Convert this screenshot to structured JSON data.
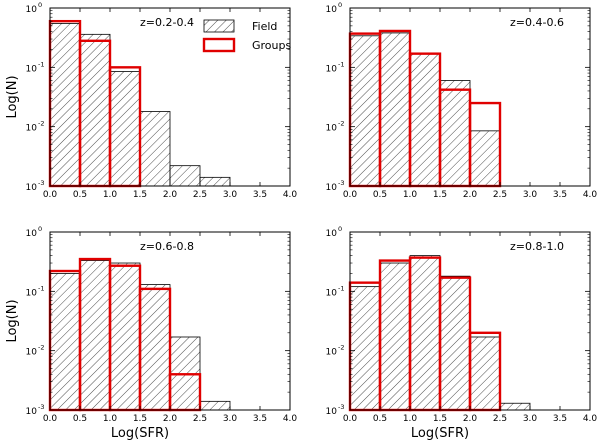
{
  "colors": {
    "field_edge": "#000000",
    "field_hatch": "#000000",
    "groups_edge": "#e00000",
    "axes": "#000000",
    "background": "#ffffff"
  },
  "legend": {
    "field_label": "Field",
    "groups_label": "Groups"
  },
  "chart_data": [
    {
      "type": "bar",
      "annotation": "z=0.2-0.4",
      "ylabel": "Log(N)",
      "xlabel": "",
      "xlim": [
        0.0,
        4.0
      ],
      "ylim_exponent": [
        -3,
        0
      ],
      "xticks": [
        "0.0",
        "0.5",
        "1.0",
        "1.5",
        "2.0",
        "2.5",
        "3.0",
        "3.5",
        "4.0"
      ],
      "yticks": [
        {
          "base": "10",
          "exp": "0"
        },
        {
          "base": "10",
          "exp": "-1"
        },
        {
          "base": "10",
          "exp": "-2"
        },
        {
          "base": "10",
          "exp": "-3"
        }
      ],
      "bin_edges": [
        0.0,
        0.5,
        1.0,
        1.5,
        2.0,
        2.5,
        3.0,
        3.5,
        4.0
      ],
      "series": [
        {
          "name": "Field",
          "values": [
            0.55,
            0.36,
            0.085,
            0.018,
            0.0022,
            0.0014,
            0,
            0
          ]
        },
        {
          "name": "Groups",
          "values": [
            0.6,
            0.28,
            0.1,
            0,
            0,
            0,
            0,
            0
          ]
        }
      ]
    },
    {
      "type": "bar",
      "annotation": "z=0.4-0.6",
      "ylabel": "",
      "xlabel": "",
      "xlim": [
        0.0,
        4.0
      ],
      "ylim_exponent": [
        -3,
        0
      ],
      "xticks": [
        "0.0",
        "0.5",
        "1.0",
        "1.5",
        "2.0",
        "2.5",
        "3.0",
        "3.5",
        "4.0"
      ],
      "yticks": [
        {
          "base": "10",
          "exp": "0"
        },
        {
          "base": "10",
          "exp": "-1"
        },
        {
          "base": "10",
          "exp": "-2"
        },
        {
          "base": "10",
          "exp": "-3"
        }
      ],
      "bin_edges": [
        0.0,
        0.5,
        1.0,
        1.5,
        2.0,
        2.5,
        3.0,
        3.5,
        4.0
      ],
      "series": [
        {
          "name": "Field",
          "values": [
            0.34,
            0.38,
            0.17,
            0.06,
            0.0085,
            0,
            0,
            0
          ]
        },
        {
          "name": "Groups",
          "values": [
            0.37,
            0.41,
            0.17,
            0.042,
            0.025,
            0,
            0,
            0
          ]
        }
      ]
    },
    {
      "type": "bar",
      "annotation": "z=0.6-0.8",
      "ylabel": "Log(N)",
      "xlabel": "Log(SFR)",
      "xlim": [
        0.0,
        4.0
      ],
      "ylim_exponent": [
        -3,
        0
      ],
      "xticks": [
        "0.0",
        "0.5",
        "1.0",
        "1.5",
        "2.0",
        "2.5",
        "3.0",
        "3.5",
        "4.0"
      ],
      "yticks": [
        {
          "base": "10",
          "exp": "0"
        },
        {
          "base": "10",
          "exp": "-1"
        },
        {
          "base": "10",
          "exp": "-2"
        },
        {
          "base": "10",
          "exp": "-3"
        }
      ],
      "bin_edges": [
        0.0,
        0.5,
        1.0,
        1.5,
        2.0,
        2.5,
        3.0,
        3.5,
        4.0
      ],
      "series": [
        {
          "name": "Field",
          "values": [
            0.2,
            0.33,
            0.3,
            0.13,
            0.017,
            0.0014,
            0,
            0
          ]
        },
        {
          "name": "Groups",
          "values": [
            0.22,
            0.35,
            0.27,
            0.11,
            0.004,
            0,
            0,
            0
          ]
        }
      ]
    },
    {
      "type": "bar",
      "annotation": "z=0.8-1.0",
      "ylabel": "",
      "xlabel": "Log(SFR)",
      "xlim": [
        0.0,
        4.0
      ],
      "ylim_exponent": [
        -3,
        0
      ],
      "xticks": [
        "0.0",
        "0.5",
        "1.0",
        "1.5",
        "2.0",
        "2.5",
        "3.0",
        "3.5",
        "4.0"
      ],
      "yticks": [
        {
          "base": "10",
          "exp": "0"
        },
        {
          "base": "10",
          "exp": "-1"
        },
        {
          "base": "10",
          "exp": "-2"
        },
        {
          "base": "10",
          "exp": "-3"
        }
      ],
      "bin_edges": [
        0.0,
        0.5,
        1.0,
        1.5,
        2.0,
        2.5,
        3.0,
        3.5,
        4.0
      ],
      "series": [
        {
          "name": "Field",
          "values": [
            0.12,
            0.3,
            0.4,
            0.18,
            0.017,
            0.0013,
            0,
            0
          ]
        },
        {
          "name": "Groups",
          "values": [
            0.14,
            0.33,
            0.37,
            0.17,
            0.02,
            0,
            0,
            0
          ]
        }
      ]
    }
  ]
}
